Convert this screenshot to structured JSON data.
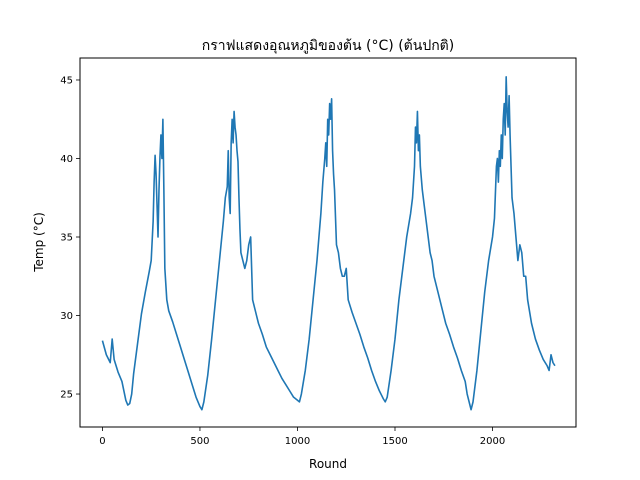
{
  "chart_data": {
    "type": "line",
    "title": "กราฟแสดงอุณหภูมิของต้น (°C) (ต้นปกติ)",
    "xlabel": "Round",
    "ylabel": "Temp (°C)",
    "xlim": [
      -115,
      2428
    ],
    "ylim": [
      22.9,
      46.4
    ],
    "xticks": [
      0,
      500,
      1000,
      1500,
      2000
    ],
    "yticks": [
      25,
      30,
      35,
      40,
      45
    ],
    "grid": false,
    "legend": "none",
    "line_color": "#1f77b4",
    "series": [
      {
        "x": [
          0,
          20,
          40,
          50,
          60,
          80,
          100,
          120,
          130,
          140,
          150,
          160,
          180,
          200,
          220,
          240,
          250,
          260,
          265,
          270,
          275,
          280,
          285,
          290,
          295,
          300,
          305,
          310,
          315,
          320,
          330,
          340,
          360,
          380,
          400,
          420,
          440,
          460,
          480,
          500,
          510,
          520,
          540,
          560,
          580,
          600,
          620,
          630,
          640,
          645,
          650,
          655,
          660,
          665,
          670,
          675,
          680,
          685,
          690,
          695,
          700,
          705,
          710,
          720,
          730,
          740,
          750,
          760,
          770,
          780,
          790,
          800,
          820,
          840,
          860,
          880,
          900,
          920,
          940,
          960,
          980,
          1000,
          1010,
          1020,
          1040,
          1060,
          1080,
          1100,
          1120,
          1130,
          1140,
          1145,
          1150,
          1155,
          1160,
          1165,
          1170,
          1175,
          1180,
          1185,
          1190,
          1200,
          1210,
          1220,
          1230,
          1240,
          1250,
          1260,
          1280,
          1300,
          1320,
          1340,
          1360,
          1380,
          1400,
          1420,
          1440,
          1450,
          1460,
          1480,
          1500,
          1520,
          1540,
          1560,
          1580,
          1590,
          1600,
          1605,
          1610,
          1615,
          1620,
          1625,
          1630,
          1640,
          1650,
          1660,
          1670,
          1680,
          1690,
          1700,
          1720,
          1740,
          1760,
          1780,
          1800,
          1820,
          1840,
          1860,
          1870,
          1880,
          1890,
          1900,
          1920,
          1940,
          1960,
          1980,
          2000,
          2010,
          2020,
          2025,
          2030,
          2035,
          2040,
          2045,
          2050,
          2055,
          2060,
          2065,
          2070,
          2075,
          2080,
          2085,
          2090,
          2095,
          2100,
          2110,
          2120,
          2130,
          2140,
          2150,
          2160,
          2170,
          2180,
          2200,
          2220,
          2240,
          2260,
          2280,
          2290,
          2300,
          2310,
          2320
        ],
        "y": [
          28.4,
          27.5,
          27.0,
          28.5,
          27.2,
          26.4,
          25.8,
          24.6,
          24.3,
          24.4,
          25.0,
          26.3,
          28.2,
          30.1,
          31.5,
          32.8,
          33.5,
          36.0,
          38.5,
          40.2,
          39.0,
          37.0,
          35.0,
          38.0,
          40.1,
          41.5,
          40.0,
          42.5,
          38.0,
          33.0,
          31.0,
          30.3,
          29.6,
          28.8,
          28.0,
          27.2,
          26.4,
          25.6,
          24.8,
          24.2,
          24.0,
          24.5,
          26.2,
          28.5,
          31.0,
          33.5,
          36.0,
          37.5,
          38.2,
          40.5,
          37.5,
          36.5,
          41.0,
          42.5,
          41.0,
          43.0,
          42.0,
          41.5,
          40.5,
          39.8,
          37.5,
          35.5,
          34.0,
          33.5,
          33.0,
          33.5,
          34.5,
          35.0,
          31.0,
          30.5,
          30.0,
          29.5,
          28.8,
          28.0,
          27.5,
          27.0,
          26.5,
          26.0,
          25.6,
          25.2,
          24.8,
          24.6,
          24.5,
          25.0,
          26.5,
          28.5,
          31.0,
          33.5,
          36.5,
          38.5,
          40.0,
          41.0,
          39.5,
          42.5,
          41.5,
          43.5,
          42.5,
          43.8,
          40.5,
          39.0,
          38.0,
          34.5,
          34.0,
          33.0,
          32.5,
          32.5,
          33.0,
          31.0,
          30.2,
          29.5,
          28.8,
          28.0,
          27.3,
          26.5,
          25.8,
          25.2,
          24.7,
          24.5,
          24.8,
          26.5,
          28.5,
          31.0,
          33.0,
          35.0,
          36.5,
          37.5,
          39.5,
          42.0,
          41.0,
          43.0,
          40.5,
          41.5,
          39.5,
          38.0,
          37.0,
          36.0,
          35.0,
          34.0,
          33.5,
          32.5,
          31.5,
          30.5,
          29.5,
          28.8,
          28.0,
          27.3,
          26.5,
          25.8,
          25.0,
          24.5,
          24.0,
          24.5,
          26.5,
          29.0,
          31.5,
          33.5,
          35.0,
          36.2,
          39.5,
          40.0,
          38.5,
          40.5,
          39.5,
          41.5,
          40.0,
          42.5,
          43.5,
          41.5,
          45.2,
          43.0,
          42.0,
          44.0,
          41.5,
          39.5,
          37.5,
          36.5,
          35.0,
          33.5,
          34.5,
          34.0,
          32.5,
          32.5,
          31.0,
          29.5,
          28.5,
          27.8,
          27.2,
          26.8,
          26.5,
          27.5,
          27.0,
          26.8
        ]
      }
    ]
  }
}
